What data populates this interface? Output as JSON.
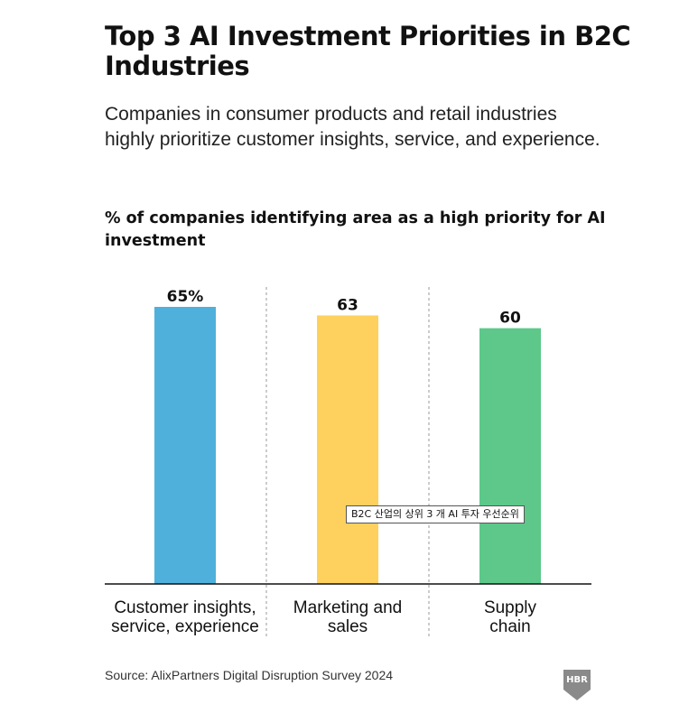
{
  "header": {
    "title": "Top 3 AI Investment Priorities in B2C Industries",
    "subtitle": "Companies in consumer products and retail industries highly prioritize customer insights, service, and experience."
  },
  "chart_data": {
    "type": "bar",
    "title": "% of companies identifying area as a high priority for AI investment",
    "categories": [
      "Customer insights, service, experience",
      "Marketing and sales",
      "Supply chain"
    ],
    "category_lines": [
      [
        "Customer insights,",
        "service, experience"
      ],
      [
        "Marketing and",
        "sales"
      ],
      [
        "Supply",
        "chain"
      ]
    ],
    "values": [
      65,
      63,
      60
    ],
    "value_labels": [
      "65%",
      "63",
      "60"
    ],
    "colors": [
      "#4fb0db",
      "#fed15e",
      "#5dc88a"
    ],
    "ylim": [
      0,
      65
    ],
    "grid": false,
    "legend": "none"
  },
  "tooltip": {
    "text": "B2C 산업의 상위 3 개 AI 투자 우선순위"
  },
  "footer": {
    "source": "Source: AlixPartners Digital Disruption Survey 2024",
    "logo_text": "HBR"
  }
}
